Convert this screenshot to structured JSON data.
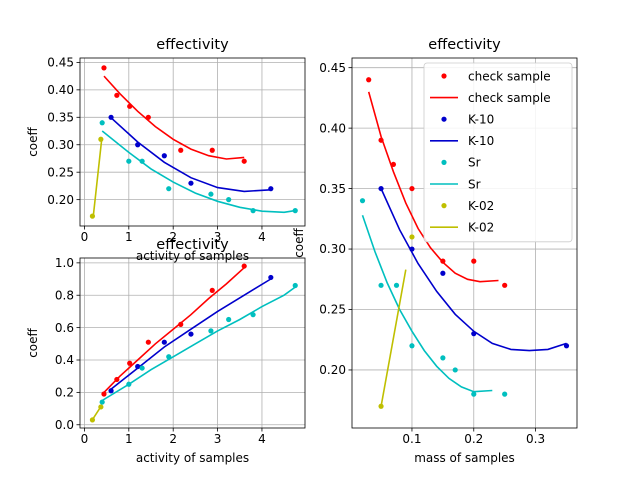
{
  "figure": {
    "background": "#ffffff"
  },
  "chart_data": [
    {
      "type": "line",
      "title": "effectivity",
      "xlabel": "activity of samples",
      "ylabel": "coeff",
      "xlim": [
        -0.1,
        4.97
      ],
      "ylim": [
        0.152,
        0.458
      ],
      "xticks": [
        0,
        1,
        2,
        3,
        4
      ],
      "yticks": [
        0.2,
        0.25,
        0.3,
        0.35,
        0.4,
        0.45
      ],
      "xtick_labels": [
        "0",
        "1",
        "2",
        "3",
        "4"
      ],
      "ytick_labels": [
        "0.20",
        "0.25",
        "0.30",
        "0.35",
        "0.40",
        "0.45"
      ],
      "grid": true,
      "legend": "none",
      "series": [
        {
          "color": "#ff0000",
          "points": {
            "x": [
              0.44,
              0.73,
              1.02,
              1.44,
              2.17,
              2.88,
              3.6
            ],
            "y": [
              0.44,
              0.39,
              0.37,
              0.35,
              0.29,
              0.29,
              0.27
            ]
          },
          "fit": {
            "x": [
              0.44,
              0.8,
              1.2,
              1.6,
              2.0,
              2.4,
              2.8,
              3.2,
              3.6
            ],
            "y": [
              0.425,
              0.393,
              0.361,
              0.333,
              0.31,
              0.292,
              0.28,
              0.274,
              0.277
            ]
          }
        },
        {
          "color": "#0000cc",
          "points": {
            "x": [
              0.6,
              1.2,
              1.8,
              2.4,
              4.2
            ],
            "y": [
              0.35,
              0.3,
              0.28,
              0.23,
              0.22
            ]
          },
          "fit": {
            "x": [
              0.6,
              1.2,
              1.8,
              2.4,
              3.0,
              3.6,
              4.2
            ],
            "y": [
              0.349,
              0.305,
              0.268,
              0.24,
              0.222,
              0.215,
              0.218
            ]
          }
        },
        {
          "color": "#00bfbf",
          "points": {
            "x": [
              0.4,
              1.0,
              1.3,
              1.9,
              2.85,
              3.25,
              3.8,
              4.75
            ],
            "y": [
              0.34,
              0.27,
              0.27,
              0.22,
              0.21,
              0.2,
              0.18,
              0.18
            ]
          },
          "fit": {
            "x": [
              0.4,
              1.0,
              1.5,
              2.0,
              2.5,
              3.0,
              3.5,
              4.0,
              4.5,
              4.75
            ],
            "y": [
              0.325,
              0.286,
              0.256,
              0.232,
              0.212,
              0.197,
              0.186,
              0.179,
              0.177,
              0.18
            ]
          }
        },
        {
          "color": "#bfbf00",
          "points": {
            "x": [
              0.18,
              0.37
            ],
            "y": [
              0.17,
              0.31
            ]
          },
          "fit": {
            "x": [
              0.2,
              0.39
            ],
            "y": [
              0.17,
              0.31
            ]
          }
        }
      ]
    },
    {
      "type": "line",
      "title": "effectivity",
      "xlabel": "activity of samples",
      "ylabel": "coeff",
      "xlim": [
        -0.1,
        4.97
      ],
      "ylim": [
        -0.02,
        1.03
      ],
      "xticks": [
        0,
        1,
        2,
        3,
        4
      ],
      "yticks": [
        0.0,
        0.2,
        0.4,
        0.6,
        0.8,
        1.0
      ],
      "xtick_labels": [
        "0",
        "1",
        "2",
        "3",
        "4"
      ],
      "ytick_labels": [
        "0.0",
        "0.2",
        "0.4",
        "0.6",
        "0.8",
        "1.0"
      ],
      "grid": true,
      "legend": "none",
      "series": [
        {
          "color": "#ff0000",
          "points": {
            "x": [
              0.44,
              0.73,
              1.02,
              1.44,
              2.17,
              2.88,
              3.6
            ],
            "y": [
              0.19,
              0.28,
              0.38,
              0.51,
              0.62,
              0.83,
              0.98
            ]
          },
          "fit": {
            "x": [
              0.44,
              0.8,
              1.2,
              1.6,
              2.0,
              2.4,
              2.8,
              3.2,
              3.6
            ],
            "y": [
              0.2,
              0.3,
              0.4,
              0.5,
              0.59,
              0.68,
              0.78,
              0.87,
              0.97
            ]
          }
        },
        {
          "color": "#0000cc",
          "points": {
            "x": [
              0.6,
              1.2,
              1.8,
              2.4,
              4.2
            ],
            "y": [
              0.21,
              0.36,
              0.51,
              0.56,
              0.91
            ]
          },
          "fit": {
            "x": [
              0.6,
              1.2,
              1.8,
              2.4,
              3.0,
              3.6,
              4.2
            ],
            "y": [
              0.22,
              0.35,
              0.48,
              0.59,
              0.7,
              0.8,
              0.9
            ]
          }
        },
        {
          "color": "#00bfbf",
          "points": {
            "x": [
              0.4,
              1.0,
              1.3,
              1.9,
              2.85,
              3.25,
              3.8,
              4.75
            ],
            "y": [
              0.14,
              0.25,
              0.35,
              0.42,
              0.58,
              0.65,
              0.68,
              0.86
            ]
          },
          "fit": {
            "x": [
              0.4,
              1.0,
              1.5,
              2.0,
              2.5,
              3.0,
              3.5,
              4.0,
              4.5,
              4.75
            ],
            "y": [
              0.15,
              0.25,
              0.34,
              0.42,
              0.5,
              0.58,
              0.65,
              0.73,
              0.8,
              0.85
            ]
          }
        },
        {
          "color": "#bfbf00",
          "points": {
            "x": [
              0.18,
              0.37
            ],
            "y": [
              0.03,
              0.11
            ]
          },
          "fit": {
            "x": [
              0.2,
              0.39
            ],
            "y": [
              0.04,
              0.12
            ]
          }
        }
      ]
    },
    {
      "type": "line",
      "title": "effectivity",
      "xlabel": "mass of samples",
      "ylabel": "coeff",
      "xlim": [
        0.003,
        0.367
      ],
      "ylim": [
        0.152,
        0.458
      ],
      "xticks": [
        0.1,
        0.2,
        0.3
      ],
      "yticks": [
        0.2,
        0.25,
        0.3,
        0.35,
        0.4,
        0.45
      ],
      "xtick_labels": [
        "0.1",
        "0.2",
        "0.3"
      ],
      "ytick_labels": [
        "0.20",
        "0.25",
        "0.30",
        "0.35",
        "0.40",
        "0.45"
      ],
      "grid": true,
      "legend": "top-right",
      "series": [
        {
          "name": "check sample",
          "color": "#ff0000",
          "points": {
            "x": [
              0.03,
              0.05,
              0.07,
              0.1,
              0.15,
              0.2,
              0.25
            ],
            "y": [
              0.44,
              0.39,
              0.37,
              0.35,
              0.29,
              0.29,
              0.27
            ]
          },
          "fit": {
            "x": [
              0.03,
              0.05,
              0.07,
              0.09,
              0.11,
              0.13,
              0.15,
              0.17,
              0.19,
              0.21,
              0.24
            ],
            "y": [
              0.43,
              0.393,
              0.364,
              0.338,
              0.317,
              0.301,
              0.289,
              0.28,
              0.275,
              0.273,
              0.274
            ]
          }
        },
        {
          "name": "K-10",
          "color": "#0000cc",
          "points": {
            "x": [
              0.05,
              0.1,
              0.15,
              0.2,
              0.35
            ],
            "y": [
              0.35,
              0.3,
              0.28,
              0.23,
              0.22
            ]
          },
          "fit": {
            "x": [
              0.05,
              0.08,
              0.11,
              0.14,
              0.17,
              0.2,
              0.23,
              0.26,
              0.29,
              0.32,
              0.35
            ],
            "y": [
              0.35,
              0.316,
              0.288,
              0.265,
              0.246,
              0.232,
              0.222,
              0.217,
              0.216,
              0.217,
              0.222
            ]
          }
        },
        {
          "name": "Sr",
          "color": "#00bfbf",
          "points": {
            "x": [
              0.02,
              0.05,
              0.075,
              0.1,
              0.15,
              0.17,
              0.2,
              0.25
            ],
            "y": [
              0.34,
              0.27,
              0.27,
              0.22,
              0.21,
              0.2,
              0.18,
              0.18
            ]
          },
          "fit": {
            "x": [
              0.02,
              0.04,
              0.06,
              0.08,
              0.1,
              0.12,
              0.14,
              0.16,
              0.18,
              0.2,
              0.23
            ],
            "y": [
              0.328,
              0.298,
              0.272,
              0.25,
              0.232,
              0.216,
              0.203,
              0.193,
              0.186,
              0.182,
              0.183
            ]
          }
        },
        {
          "name": "K-02",
          "color": "#bfbf00",
          "points": {
            "x": [
              0.05,
              0.1
            ],
            "y": [
              0.17,
              0.31
            ]
          },
          "fit": {
            "x": [
              0.05,
              0.09
            ],
            "y": [
              0.17,
              0.283
            ]
          }
        }
      ],
      "legend_entries": [
        {
          "label": "check sample",
          "color": "#ff0000",
          "kind": "marker"
        },
        {
          "label": "check sample",
          "color": "#ff0000",
          "kind": "line"
        },
        {
          "label": "K-10",
          "color": "#0000cc",
          "kind": "marker"
        },
        {
          "label": "K-10",
          "color": "#0000cc",
          "kind": "line"
        },
        {
          "label": "Sr",
          "color": "#00bfbf",
          "kind": "marker"
        },
        {
          "label": "Sr",
          "color": "#00bfbf",
          "kind": "line"
        },
        {
          "label": "K-02",
          "color": "#bfbf00",
          "kind": "marker"
        },
        {
          "label": "K-02",
          "color": "#bfbf00",
          "kind": "line"
        }
      ]
    }
  ]
}
